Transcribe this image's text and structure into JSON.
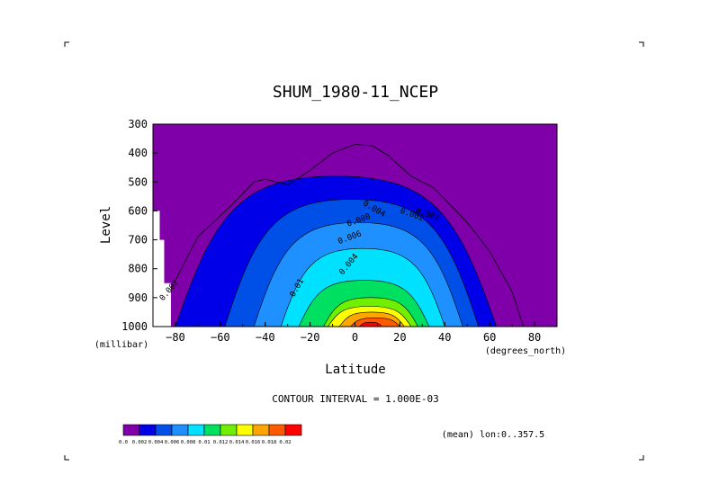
{
  "chart_data": {
    "type": "contour",
    "title": "SHUM_1980-11_NCEP",
    "xlabel": "Latitude",
    "ylabel": "Level",
    "x_units": "(degrees_north)",
    "y_units": "(millibar)",
    "xlim": [
      -90,
      90
    ],
    "ylim": [
      1000,
      300
    ],
    "x_ticks": [
      -80,
      -60,
      -40,
      -20,
      0,
      20,
      40,
      60,
      80
    ],
    "y_ticks": [
      300,
      400,
      500,
      600,
      700,
      800,
      900,
      1000
    ],
    "contour_interval_text": "CONTOUR INTERVAL = 1.000E-03",
    "mean_text": "(mean) lon:0..357.5",
    "contour_labels": [
      "0.002",
      "0.004",
      "0.006",
      "0.008",
      "0.01",
      "0.002",
      "0.004",
      "0.002"
    ],
    "colorbar": {
      "labels": [
        "0.0",
        "0.002",
        "0.004",
        "0.006",
        "0.008",
        "0.01",
        "0.012",
        "0.014",
        "0.016",
        "0.018",
        "0.02"
      ],
      "colors": [
        "#7f00a8",
        "#0000e8",
        "#0050e8",
        "#1e90ff",
        "#00e0ff",
        "#00e060",
        "#70f000",
        "#ffff00",
        "#ffa500",
        "#ff5a00",
        "#ff0000"
      ]
    },
    "levels": [
      {
        "value": 0.002,
        "color": "#0000e8",
        "lat_min": -80,
        "lat_max": 63,
        "p_top": 480
      },
      {
        "value": 0.004,
        "color": "#0050e8",
        "lat_min": -58,
        "lat_max": 55,
        "p_top": 560
      },
      {
        "value": 0.006,
        "color": "#1e90ff",
        "lat_min": -45,
        "lat_max": 48,
        "p_top": 640
      },
      {
        "value": 0.008,
        "color": "#00e0ff",
        "lat_min": -33,
        "lat_max": 40,
        "p_top": 730
      },
      {
        "value": 0.01,
        "color": "#00e060",
        "lat_min": -25,
        "lat_max": 33,
        "p_top": 840
      },
      {
        "value": 0.012,
        "color": "#70f000",
        "lat_min": -14,
        "lat_max": 28,
        "p_top": 900
      },
      {
        "value": 0.014,
        "color": "#ffff00",
        "lat_min": -12,
        "lat_max": 25,
        "p_top": 930
      },
      {
        "value": 0.016,
        "color": "#ffa500",
        "lat_min": -7,
        "lat_max": 22,
        "p_top": 950
      },
      {
        "value": 0.018,
        "color": "#ff5a00",
        "lat_min": -2,
        "lat_max": 20,
        "p_top": 970
      },
      {
        "value": 0.02,
        "color": "#ff0000",
        "lat_min": 2,
        "lat_max": 12,
        "p_top": 985
      }
    ],
    "outer_contour": {
      "value": 0.001,
      "points": [
        [
          -85,
          1000
        ],
        [
          -82,
          870
        ],
        [
          -70,
          690
        ],
        [
          -55,
          580
        ],
        [
          -45,
          500
        ],
        [
          -40,
          490
        ],
        [
          -30,
          510
        ],
        [
          -20,
          460
        ],
        [
          -10,
          400
        ],
        [
          0,
          370
        ],
        [
          8,
          375
        ],
        [
          15,
          410
        ],
        [
          25,
          480
        ],
        [
          35,
          520
        ],
        [
          50,
          640
        ],
        [
          60,
          740
        ],
        [
          70,
          880
        ],
        [
          75,
          1000
        ]
      ]
    }
  }
}
